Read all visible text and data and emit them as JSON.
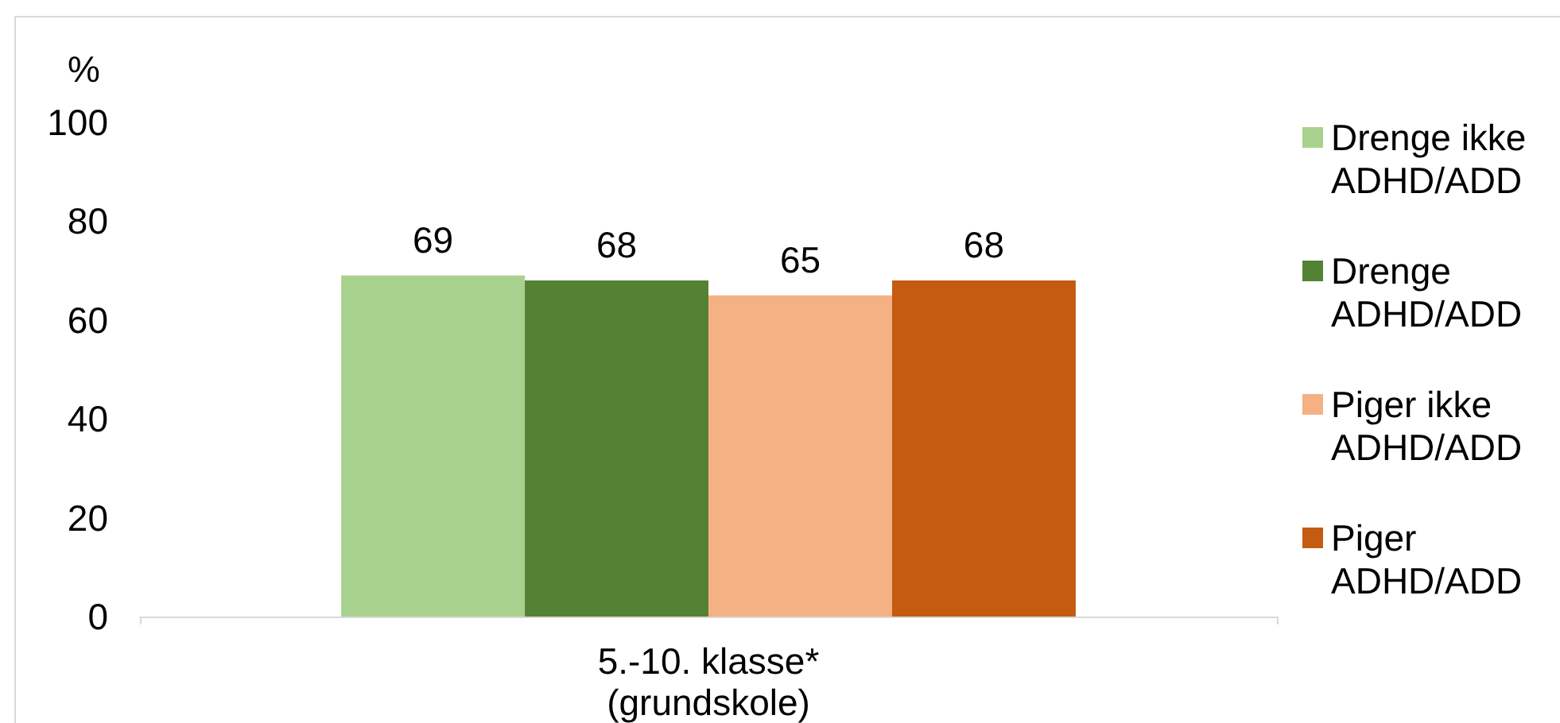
{
  "chart_data": {
    "type": "bar",
    "ylabel": "%",
    "categories": [
      "5.-10. klasse* (grundskole)"
    ],
    "series": [
      {
        "name": "Drenge ikke ADHD/ADD",
        "color": "#a9d18e",
        "values": [
          69
        ]
      },
      {
        "name": "Drenge ADHD/ADD",
        "color": "#548235",
        "values": [
          68
        ]
      },
      {
        "name": "Piger ikke ADHD/ADD",
        "color": "#f4b183",
        "values": [
          65
        ]
      },
      {
        "name": "Piger ADHD/ADD",
        "color": "#c55a11",
        "values": [
          68
        ]
      }
    ],
    "ylim": [
      0,
      100
    ],
    "yticks": [
      0,
      20,
      40,
      60,
      80,
      100
    ],
    "data_labels": true,
    "legend": "right"
  }
}
